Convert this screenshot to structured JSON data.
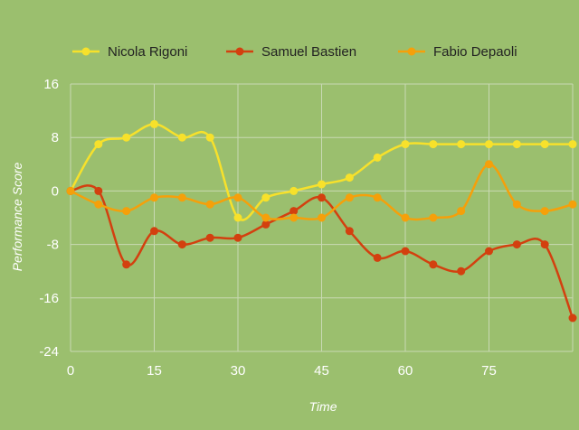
{
  "chart_data": {
    "type": "line",
    "xlabel": "Time",
    "ylabel": "Performance Score",
    "xlim": [
      0,
      90
    ],
    "ylim": [
      -24,
      16
    ],
    "x_ticks": [
      0,
      15,
      30,
      45,
      60,
      75
    ],
    "y_ticks": [
      16,
      8,
      0,
      -8,
      -16,
      -24
    ],
    "x_tick_labels": [
      "0",
      "15",
      "30",
      "45",
      "60",
      "75"
    ],
    "y_tick_labels": [
      "16",
      "8",
      "0",
      "-8",
      "-16",
      "-24"
    ],
    "grid": true,
    "smooth": true,
    "legend_position": "top",
    "x": [
      0,
      5,
      10,
      15,
      20,
      25,
      30,
      35,
      40,
      45,
      50,
      55,
      60,
      65,
      70,
      75,
      80,
      85,
      90
    ],
    "series": [
      {
        "name": "Nicola Rigoni",
        "color": "#f7e12b",
        "values": [
          0,
          7,
          8,
          10,
          8,
          8,
          -4,
          -1,
          0,
          1,
          2,
          5,
          7,
          7,
          7,
          7,
          7,
          7,
          7
        ]
      },
      {
        "name": "Samuel Bastien",
        "color": "#d3400f",
        "values": [
          0,
          0,
          -11,
          -6,
          -8,
          -7,
          -7,
          -5,
          -3,
          -1,
          -6,
          -10,
          -9,
          -11,
          -12,
          -9,
          -8,
          -8,
          -19
        ]
      },
      {
        "name": "Fabio Depaoli",
        "color": "#f5a00a",
        "values": [
          0,
          -2,
          -3,
          -1,
          -1,
          -2,
          -1,
          -4,
          -4,
          -4,
          -1,
          -1,
          -4,
          -4,
          -3,
          4,
          -2,
          -3,
          -2
        ]
      }
    ]
  }
}
